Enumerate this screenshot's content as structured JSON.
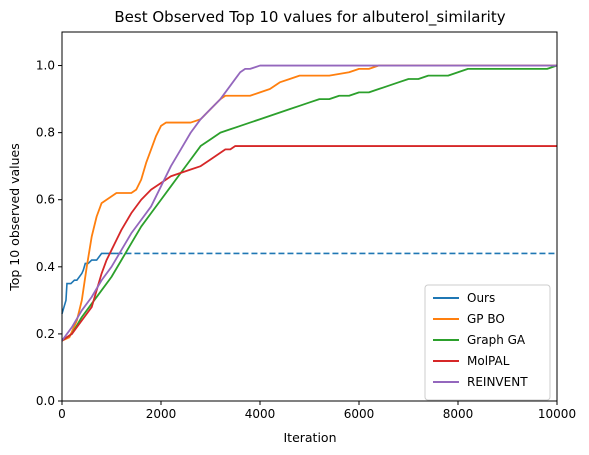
{
  "chart_data": {
    "type": "line",
    "title": "Best Observed Top 10 values for albuterol_similarity",
    "xlabel": "Iteration",
    "ylabel": "Top 10 observed values",
    "xlim": [
      0,
      10000
    ],
    "ylim": [
      0,
      1.1
    ],
    "xticks": [
      0,
      2000,
      4000,
      6000,
      8000,
      10000
    ],
    "yticks": [
      0.0,
      0.2,
      0.4,
      0.6,
      0.8,
      1.0
    ],
    "xtick_labels": [
      "0",
      "2000",
      "4000",
      "6000",
      "8000",
      "10000"
    ],
    "ytick_labels": [
      "0.0",
      "0.2",
      "0.4",
      "0.6",
      "0.8",
      "1.0"
    ],
    "grid": false,
    "legend_position": "lower-right",
    "series": [
      {
        "name": "Ours",
        "color": "#1f77b4",
        "style": "solid-then-dashed",
        "dash_from_x": 1100,
        "x": [
          0,
          40,
          80,
          100,
          120,
          180,
          250,
          300,
          350,
          400,
          430,
          470,
          530,
          600,
          650,
          700,
          750,
          800,
          1100,
          10000
        ],
        "y": [
          0.26,
          0.28,
          0.3,
          0.35,
          0.35,
          0.35,
          0.36,
          0.36,
          0.37,
          0.38,
          0.39,
          0.41,
          0.41,
          0.42,
          0.42,
          0.42,
          0.43,
          0.44,
          0.44,
          0.44
        ]
      },
      {
        "name": "GP BO",
        "color": "#ff7f0e",
        "x": [
          0,
          150,
          300,
          400,
          500,
          600,
          700,
          800,
          900,
          1000,
          1100,
          1200,
          1400,
          1500,
          1600,
          1700,
          1800,
          1900,
          2000,
          2100,
          2200,
          2400,
          2600,
          2800,
          3000,
          3200,
          3300,
          3400,
          3600,
          3800,
          4000,
          4200,
          4400,
          4600,
          4800,
          5000,
          5200,
          5400,
          5800,
          6000,
          6200,
          6400,
          10000
        ],
        "y": [
          0.18,
          0.19,
          0.24,
          0.3,
          0.4,
          0.49,
          0.55,
          0.59,
          0.6,
          0.61,
          0.62,
          0.62,
          0.62,
          0.63,
          0.66,
          0.71,
          0.75,
          0.79,
          0.82,
          0.83,
          0.83,
          0.83,
          0.83,
          0.84,
          0.87,
          0.9,
          0.91,
          0.91,
          0.91,
          0.91,
          0.92,
          0.93,
          0.95,
          0.96,
          0.97,
          0.97,
          0.97,
          0.97,
          0.98,
          0.99,
          0.99,
          1.0,
          1.0
        ]
      },
      {
        "name": "Graph GA",
        "color": "#2ca02c",
        "x": [
          0,
          200,
          400,
          600,
          800,
          1000,
          1200,
          1400,
          1600,
          1800,
          2000,
          2200,
          2400,
          2600,
          2800,
          3000,
          3200,
          3400,
          3600,
          3800,
          4000,
          4200,
          4400,
          4600,
          4800,
          5000,
          5200,
          5400,
          5600,
          5800,
          6000,
          6200,
          6400,
          6600,
          6800,
          7000,
          7200,
          7400,
          7600,
          7800,
          8000,
          8200,
          9800,
          10000
        ],
        "y": [
          0.18,
          0.2,
          0.25,
          0.29,
          0.33,
          0.37,
          0.42,
          0.47,
          0.52,
          0.56,
          0.6,
          0.64,
          0.68,
          0.72,
          0.76,
          0.78,
          0.8,
          0.81,
          0.82,
          0.83,
          0.84,
          0.85,
          0.86,
          0.87,
          0.88,
          0.89,
          0.9,
          0.9,
          0.91,
          0.91,
          0.92,
          0.92,
          0.93,
          0.94,
          0.95,
          0.96,
          0.96,
          0.97,
          0.97,
          0.97,
          0.98,
          0.99,
          0.99,
          1.0
        ]
      },
      {
        "name": "MolPAL",
        "color": "#d62728",
        "x": [
          0,
          200,
          400,
          600,
          700,
          800,
          900,
          1000,
          1100,
          1200,
          1400,
          1600,
          1800,
          2000,
          2200,
          2400,
          2600,
          2800,
          3000,
          3200,
          3300,
          3400,
          3500,
          3600,
          10000
        ],
        "y": [
          0.18,
          0.2,
          0.24,
          0.28,
          0.33,
          0.38,
          0.42,
          0.45,
          0.48,
          0.51,
          0.56,
          0.6,
          0.63,
          0.65,
          0.67,
          0.68,
          0.69,
          0.7,
          0.72,
          0.74,
          0.75,
          0.75,
          0.76,
          0.76,
          0.76
        ]
      },
      {
        "name": "REINVENT",
        "color": "#9467bd",
        "x": [
          0,
          200,
          400,
          600,
          800,
          1000,
          1200,
          1400,
          1600,
          1800,
          2000,
          2200,
          2400,
          2600,
          2800,
          3000,
          3200,
          3400,
          3500,
          3600,
          3700,
          3800,
          3900,
          4000,
          10000
        ],
        "y": [
          0.18,
          0.22,
          0.27,
          0.31,
          0.36,
          0.4,
          0.45,
          0.5,
          0.54,
          0.58,
          0.64,
          0.7,
          0.75,
          0.8,
          0.84,
          0.87,
          0.9,
          0.94,
          0.96,
          0.98,
          0.99,
          0.99,
          0.995,
          1.0,
          1.0
        ]
      }
    ]
  }
}
